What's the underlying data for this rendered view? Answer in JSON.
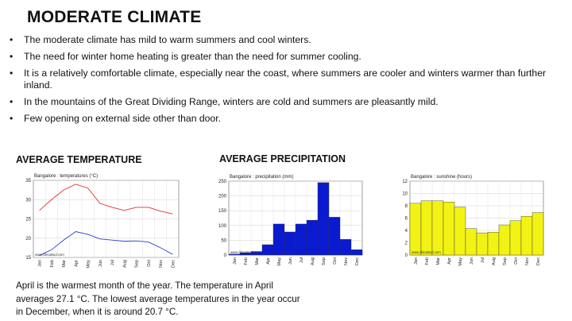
{
  "slide": {
    "title": "MODERATE CLIMATE",
    "bullets": [
      "The moderate climate has mild to warm summers and cool winters.",
      "The need for winter home heating is greater than the need for summer cooling.",
      "It is a relatively comfortable climate, especially near the coast, where summers are cooler and winters warmer than further inland.",
      "In the mountains of the Great Dividing Range, winters are cold and summers are pleasantly mild.",
      "Few opening on external side other than door."
    ],
    "headings": {
      "temperature": "AVERAGE TEMPERATURE",
      "precipitation": "AVERAGE PRECIPITATION"
    },
    "caption": "April is the warmest month of the year. The temperature in April averages 27.1 °C. The lowest average temperatures in the year occur in December, when it is around 20.7 °C."
  },
  "chart_data": [
    {
      "type": "line",
      "title": "Bangalore : temperatures (°C)",
      "categories": [
        "Jan",
        "Feb",
        "Mar",
        "Apr",
        "May",
        "Jun",
        "Jul",
        "Aug",
        "Sep",
        "Oct",
        "Nov",
        "Dec"
      ],
      "ylim": [
        15,
        35
      ],
      "yticks": [
        15,
        20,
        25,
        30,
        35
      ],
      "grid": true,
      "watermark": "www.climatsud.com",
      "series": [
        {
          "color": "#e03030",
          "values": [
            27.2,
            30.0,
            32.5,
            34.0,
            33.0,
            29.0,
            28.0,
            27.2,
            28.0,
            28.0,
            27.0,
            26.3
          ]
        },
        {
          "color": "#2a3fd0",
          "values": [
            15.5,
            17.0,
            19.5,
            21.7,
            21.0,
            19.8,
            19.5,
            19.2,
            19.3,
            19.0,
            17.5,
            15.8
          ]
        }
      ]
    },
    {
      "type": "bar",
      "title": "Bangalore : precipitation (mm)",
      "categories": [
        "Jan",
        "Feb",
        "Mar",
        "Apr",
        "May",
        "Jun",
        "Jul",
        "Aug",
        "Sep",
        "Oct",
        "Nov",
        "Dec"
      ],
      "ylim": [
        0,
        250
      ],
      "yticks": [
        0,
        50,
        100,
        150,
        200,
        250
      ],
      "grid": true,
      "color": "#0a1ad0",
      "watermark": "www.climatsud.com",
      "values": [
        3,
        8,
        12,
        35,
        105,
        78,
        105,
        118,
        245,
        128,
        53,
        18
      ]
    },
    {
      "type": "bar",
      "title": "Bangalore : sunshine (hours)",
      "categories": [
        "Jan",
        "Feb",
        "Mar",
        "Apr",
        "May",
        "Jun",
        "Jul",
        "Aug",
        "Sep",
        "Oct",
        "Nov",
        "Dec"
      ],
      "ylim": [
        0,
        12
      ],
      "yticks": [
        0,
        2,
        4,
        6,
        8,
        10,
        12
      ],
      "grid": true,
      "color": "#f2f214",
      "watermark": "www.climatsud.com",
      "values": [
        8.4,
        8.8,
        8.8,
        8.6,
        7.8,
        4.3,
        3.6,
        3.7,
        4.9,
        5.6,
        6.3,
        6.9
      ]
    }
  ]
}
